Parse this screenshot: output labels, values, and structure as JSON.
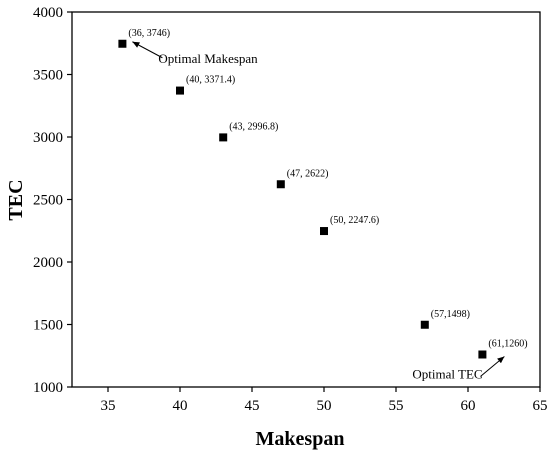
{
  "chart_data": {
    "type": "scatter",
    "xlabel": "Makespan",
    "ylabel": "TEC",
    "xlim": [
      32.5,
      65
    ],
    "ylim": [
      1000,
      4000
    ],
    "xticks": [
      35,
      40,
      45,
      50,
      55,
      60,
      65
    ],
    "yticks": [
      1000,
      1500,
      2000,
      2500,
      3000,
      3500,
      4000
    ],
    "grid": false,
    "points": [
      {
        "x": 36,
        "y": 3746,
        "label": "(36, 3746)"
      },
      {
        "x": 40,
        "y": 3371.4,
        "label": "(40, 3371.4)"
      },
      {
        "x": 43,
        "y": 2996.8,
        "label": "(43, 2996.8)"
      },
      {
        "x": 47,
        "y": 2622,
        "label": "(47, 2622)"
      },
      {
        "x": 50,
        "y": 2247.6,
        "label": "(50, 2247.6)"
      },
      {
        "x": 57,
        "y": 1498,
        "label": "(57,1498)"
      },
      {
        "x": 61,
        "y": 1260,
        "label": "(61,1260)"
      }
    ],
    "annotations": [
      {
        "text": "Optimal Makespan",
        "point_index": 0
      },
      {
        "text": "Optimal TEC",
        "point_index": 6
      }
    ]
  }
}
